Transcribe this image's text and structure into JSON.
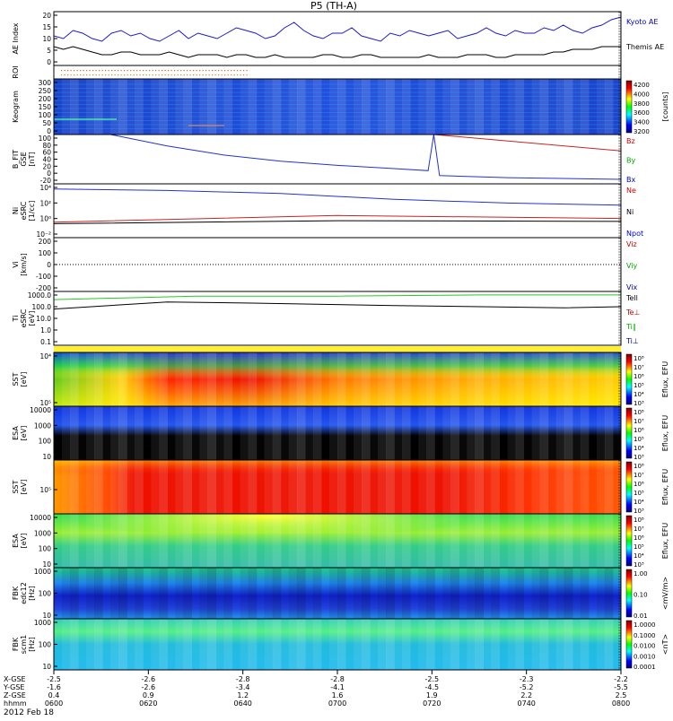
{
  "title": "P5 (TH-A)",
  "date_label": "2012 Feb 18",
  "chart_data": {
    "type": "line",
    "panels": [
      {
        "id": "ae",
        "ylabel": [
          "AE Index"
        ],
        "yticks": [
          "20",
          "15",
          "10",
          "5",
          "0"
        ],
        "legend": [
          {
            "label": "Kyoto AE",
            "color": "#0000cc"
          },
          {
            "label": "Themis AE",
            "color": "#000000"
          }
        ],
        "ylim": [
          0,
          20
        ],
        "series": [
          {
            "name": "Kyoto AE",
            "color": "#1a1acc",
            "values": [
              11,
              10,
              13,
              12,
              10,
              9,
              12,
              13,
              11,
              12,
              10,
              9,
              11,
              13,
              10,
              12,
              11,
              10,
              12,
              14,
              13,
              12,
              10,
              11,
              14,
              16,
              13,
              11,
              10,
              12,
              12,
              14,
              11,
              10,
              9,
              12,
              11,
              13,
              12,
              11,
              12,
              13,
              10,
              11,
              12,
              14,
              12,
              11,
              13,
              12,
              12,
              14,
              13,
              15,
              13,
              12,
              14,
              15,
              17,
              18
            ]
          },
          {
            "name": "Themis AE",
            "color": "#000000",
            "values": [
              7,
              6,
              7,
              6,
              5,
              4,
              4,
              5,
              5,
              4,
              4,
              4,
              5,
              4,
              3,
              4,
              4,
              4,
              3,
              4,
              4,
              3,
              3,
              4,
              3,
              3,
              3,
              3,
              4,
              4,
              3,
              3,
              4,
              4,
              3,
              3,
              3,
              3,
              3,
              4,
              3,
              3,
              3,
              4,
              4,
              4,
              3,
              3,
              4,
              4,
              4,
              4,
              5,
              5,
              6,
              6,
              6,
              7,
              7,
              7
            ]
          }
        ]
      },
      {
        "id": "roi",
        "ylabel": [
          "ROI"
        ]
      },
      {
        "id": "keogram",
        "ylabel": [
          "Keogram"
        ],
        "yticks": [
          "300",
          "250",
          "200",
          "150",
          "100",
          "50",
          "0"
        ],
        "colorbar": {
          "ticks": [
            "4200",
            "4000",
            "3800",
            "3600",
            "3400",
            "3200"
          ],
          "label": "[counts]"
        }
      },
      {
        "id": "bfit",
        "ylabel": [
          "B_FIT",
          "GSE",
          "[nT]"
        ],
        "yticks": [
          "100",
          "80",
          "60",
          "40",
          "20",
          "0",
          "-20"
        ],
        "ylim": [
          -20,
          100
        ],
        "legend": [
          {
            "label": "Bz",
            "color": "#cc0000"
          },
          {
            "label": "By",
            "color": "#00aa00"
          },
          {
            "label": "Bx",
            "color": "#0000cc"
          }
        ],
        "series": [
          {
            "name": "Bz",
            "color": "#cc2222",
            "x": [
              0.67,
              1.0
            ],
            "values": [
              100,
              60
            ]
          },
          {
            "name": "Bx",
            "color": "#2233cc",
            "x": [
              0.1,
              0.2,
              0.3,
              0.4,
              0.5,
              0.6,
              0.66,
              0.67,
              0.68,
              0.8,
              1.0
            ],
            "values": [
              100,
              72,
              50,
              35,
              25,
              17,
              12,
              100,
              0,
              -5,
              -9
            ]
          }
        ]
      },
      {
        "id": "ni",
        "ylabel": [
          "Ni",
          "eSRC",
          "[1/cc]"
        ],
        "yticks": [
          "10⁴",
          "10²",
          "10⁰",
          "10⁻²"
        ],
        "legend": [
          {
            "label": "Ne",
            "color": "#cc0000"
          },
          {
            "label": "Ni",
            "color": "#000000"
          },
          {
            "label": "Npot",
            "color": "#0000cc"
          }
        ],
        "series": [
          {
            "name": "Ni",
            "color": "#2233cc",
            "x": [
              0.0,
              0.2,
              0.4,
              0.6,
              0.8,
              1.0
            ],
            "values": [
              4.1,
              3.9,
              3.5,
              2.7,
              2.2,
              1.9
            ]
          },
          {
            "name": "Ne",
            "color": "#cc2222",
            "x": [
              0.0,
              0.5,
              1.0
            ],
            "values": [
              -0.4,
              0.5,
              0.1
            ]
          },
          {
            "name": "Npot",
            "color": "#000000",
            "x": [
              0.0,
              0.5,
              1.0
            ],
            "values": [
              -0.6,
              -0.2,
              -0.3
            ]
          }
        ]
      },
      {
        "id": "vi",
        "ylabel": [
          "Vi",
          "[km/s]"
        ],
        "yticks": [
          "200",
          "100",
          "0",
          "-100",
          "-200"
        ],
        "legend": [
          {
            "label": "Viz",
            "color": "#cc0000"
          },
          {
            "label": "Viy",
            "color": "#00aa00"
          },
          {
            "label": "Vix",
            "color": "#0000cc"
          }
        ]
      },
      {
        "id": "ti",
        "ylabel": [
          "Ti",
          "eSRC",
          "[eV]"
        ],
        "yticks": [
          "1000.0",
          "100.0",
          "10.0",
          "1.0",
          "0.1"
        ],
        "legend": [
          {
            "label": "Tell",
            "color": "#000000"
          },
          {
            "label": "Te⊥",
            "color": "#cc0000"
          },
          {
            "label": "Ti∥",
            "color": "#00aa00"
          },
          {
            "label": "Ti⊥",
            "color": "#0000cc"
          }
        ],
        "series": [
          {
            "name": "Tell",
            "color": "#22cc22",
            "x": [
              0.0,
              0.25,
              0.5,
              0.75,
              1.0
            ],
            "values": [
              2.7,
              3.0,
              3.0,
              3.1,
              3.1
            ]
          },
          {
            "name": "Ti∥",
            "color": "#000000",
            "x": [
              0.0,
              0.2,
              0.35,
              0.6,
              0.9,
              1.0
            ],
            "values": [
              1.9,
              2.5,
              2.4,
              2.2,
              2.0,
              2.1
            ]
          }
        ]
      },
      {
        "id": "sst1",
        "ylabel": [
          "SST",
          "[eV]"
        ],
        "yticks": [
          "10⁴",
          "10⁵"
        ],
        "colorbar": {
          "ticks": [
            "10⁸",
            "10⁷",
            "10⁶",
            "10⁵",
            "10⁴",
            "10³"
          ],
          "label": "Eflux, EFU"
        }
      },
      {
        "id": "esa1",
        "ylabel": [
          "ESA",
          "[eV]"
        ],
        "yticks": [
          "10000",
          "1000",
          "100",
          "10"
        ],
        "colorbar": {
          "ticks": [
            "10⁸",
            "10⁷",
            "10⁶",
            "10⁵",
            "10⁴",
            "10³"
          ],
          "label": "Eflux, EFU"
        }
      },
      {
        "id": "sst2",
        "ylabel": [
          "SST",
          "[eV]"
        ],
        "yticks": [
          "10⁵"
        ],
        "colorbar": {
          "ticks": [
            "10⁸",
            "10⁷",
            "10⁶",
            "10⁵",
            "10⁴",
            "10³"
          ],
          "label": "Eflux, EFU"
        }
      },
      {
        "id": "esa2",
        "ylabel": [
          "ESA",
          "[eV]"
        ],
        "yticks": [
          "10000",
          "1000",
          "100",
          "10"
        ],
        "colorbar": {
          "ticks": [
            "10⁸",
            "10⁷",
            "10⁶",
            "10⁵",
            "10⁴",
            "10³"
          ],
          "label": "Eflux, EFU"
        }
      },
      {
        "id": "fbk1",
        "ylabel": [
          "FBK",
          "edc12",
          "[Hz]"
        ],
        "yticks": [
          "1000",
          "100",
          "10"
        ],
        "colorbar": {
          "ticks": [
            "1.00",
            "0.10",
            "0.01"
          ],
          "label": "<mV/m>"
        }
      },
      {
        "id": "fbk2",
        "ylabel": [
          "FBK",
          "scm1",
          "[Hz]"
        ],
        "yticks": [
          "1000",
          "100",
          "10"
        ],
        "colorbar": {
          "ticks": [
            "1.0000",
            "0.1000",
            "0.0100",
            "0.0010",
            "0.0001"
          ],
          "label": "<nT>"
        }
      }
    ],
    "xaxis": {
      "row_labels": [
        "X-GSE",
        "Y-GSE",
        "Z-GSE",
        "hhmm"
      ],
      "columns": [
        {
          "x": "-2.5",
          "y": "-1.6",
          "z": "0.4",
          "t": "0600"
        },
        {
          "x": "-2.6",
          "y": "-2.6",
          "z": "0.9",
          "t": "0620"
        },
        {
          "x": "-2.8",
          "y": "-3.4",
          "z": "1.2",
          "t": "0640"
        },
        {
          "x": "-2.8",
          "y": "-4.1",
          "z": "1.6",
          "t": "0700"
        },
        {
          "x": "-2.5",
          "y": "-4.5",
          "z": "1.9",
          "t": "0720"
        },
        {
          "x": "-2.3",
          "y": "-5.2",
          "z": "2.2",
          "t": "0740"
        },
        {
          "x": "-2.2",
          "y": "-5.5",
          "z": "2.5",
          "t": "0800"
        }
      ]
    }
  }
}
